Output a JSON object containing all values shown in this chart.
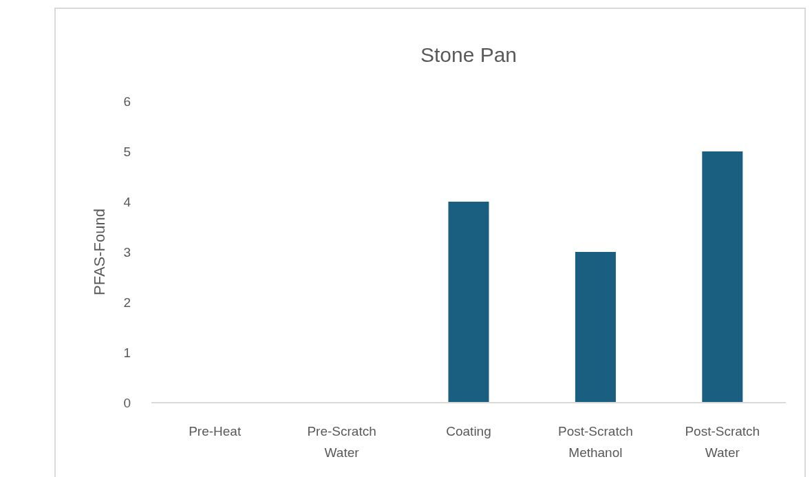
{
  "chart_data": {
    "type": "bar",
    "title": "Stone Pan",
    "ylabel": "PFAS-Found",
    "categories": [
      "Pre-Heat",
      "Pre-Scratch Water",
      "Coating",
      "Post-Scratch Methanol",
      "Post-Scratch Water"
    ],
    "values": [
      0,
      0,
      4,
      3,
      5
    ],
    "color": "#1a5e80",
    "ylim": [
      0,
      6
    ],
    "yticks": [
      0,
      1,
      2,
      3,
      4,
      5,
      6
    ],
    "grid": false
  }
}
